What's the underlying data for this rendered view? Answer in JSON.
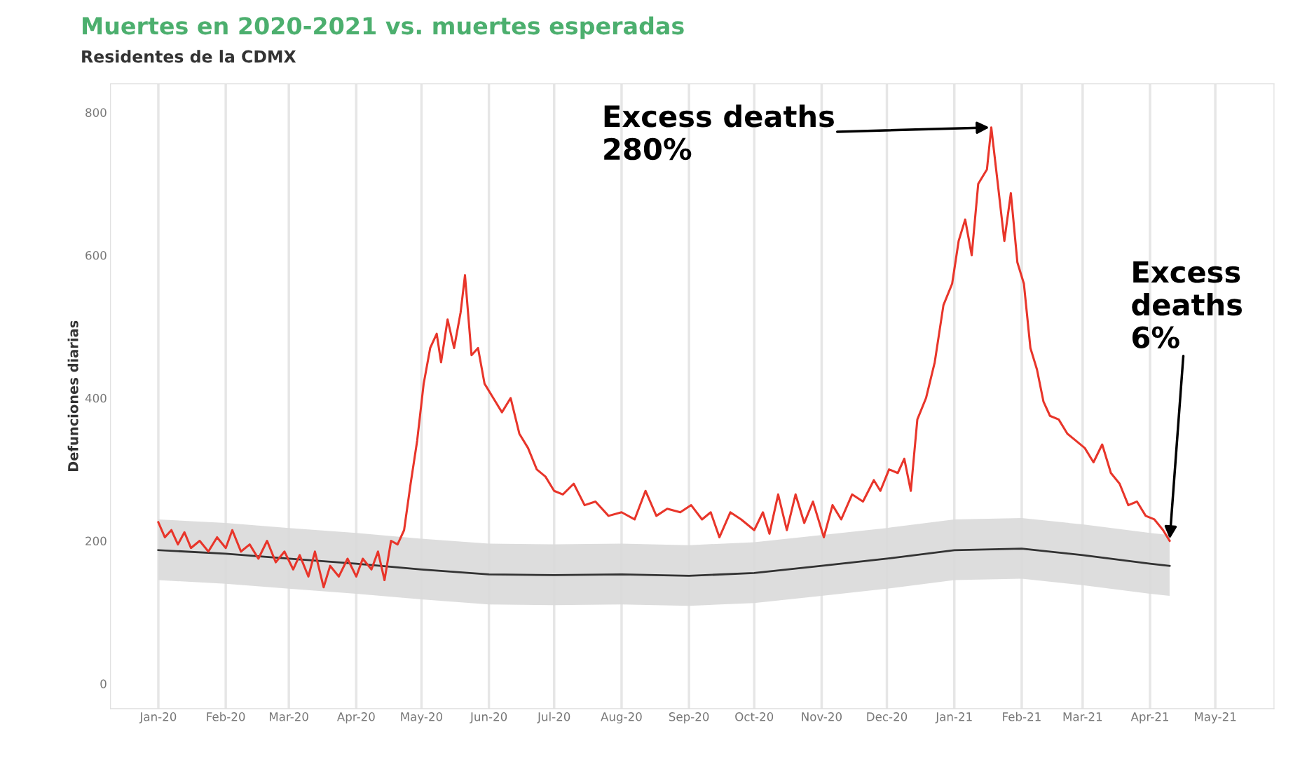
{
  "chart_data": {
    "type": "line",
    "title": "Muertes en 2020-2021 vs. muertes esperadas",
    "subtitle": "Residentes de la CDMX",
    "ylabel": "Defunciones diarias",
    "xlim": [
      "2019-12-10",
      "2021-05-28"
    ],
    "xticks": [
      {
        "value": "2020-01-01",
        "label": "Jan-20"
      },
      {
        "value": "2020-02-01",
        "label": "Feb-20"
      },
      {
        "value": "2020-03-01",
        "label": "Mar-20"
      },
      {
        "value": "2020-04-01",
        "label": "Apr-20"
      },
      {
        "value": "2020-05-01",
        "label": "May-20"
      },
      {
        "value": "2020-06-01",
        "label": "Jun-20"
      },
      {
        "value": "2020-07-01",
        "label": "Jul-20"
      },
      {
        "value": "2020-08-01",
        "label": "Aug-20"
      },
      {
        "value": "2020-09-01",
        "label": "Sep-20"
      },
      {
        "value": "2020-10-01",
        "label": "Oct-20"
      },
      {
        "value": "2020-11-01",
        "label": "Nov-20"
      },
      {
        "value": "2020-12-01",
        "label": "Dec-20"
      },
      {
        "value": "2021-01-01",
        "label": "Jan-21"
      },
      {
        "value": "2021-02-01",
        "label": "Feb-21"
      },
      {
        "value": "2021-03-01",
        "label": "Mar-21"
      },
      {
        "value": "2021-04-01",
        "label": "Apr-21"
      },
      {
        "value": "2021-05-01",
        "label": "May-21"
      }
    ],
    "ylim": [
      -35,
      840
    ],
    "yticks": [
      0,
      200,
      400,
      600,
      800
    ],
    "grid": "x",
    "line_style": "solid",
    "series": [
      {
        "color": "#333333",
        "x": [
          "2020-01-01",
          "2020-02-01",
          "2020-03-01",
          "2020-04-01",
          "2020-05-01",
          "2020-06-01",
          "2020-07-01",
          "2020-08-01",
          "2020-09-01",
          "2020-10-01",
          "2020-11-01",
          "2020-12-01",
          "2021-01-01",
          "2021-02-01",
          "2021-03-01",
          "2021-04-01",
          "2021-04-10"
        ],
        "values": [
          187,
          182,
          175,
          168,
          160,
          153,
          152,
          153,
          151,
          155,
          165,
          175,
          187,
          189,
          180,
          168,
          165
        ],
        "lower": [
          145,
          140,
          133,
          126,
          118,
          111,
          110,
          111,
          109,
          113,
          123,
          133,
          145,
          147,
          138,
          126,
          123
        ],
        "upper": [
          230,
          225,
          218,
          211,
          203,
          196,
          195,
          196,
          194,
          198,
          208,
          218,
          230,
          232,
          223,
          211,
          208
        ]
      },
      {
        "color": "#e8352a",
        "x": [
          "2020-01-01",
          "2020-01-04",
          "2020-01-07",
          "2020-01-10",
          "2020-01-13",
          "2020-01-16",
          "2020-01-20",
          "2020-01-24",
          "2020-01-28",
          "2020-02-01",
          "2020-02-04",
          "2020-02-08",
          "2020-02-12",
          "2020-02-16",
          "2020-02-20",
          "2020-02-24",
          "2020-02-28",
          "2020-03-03",
          "2020-03-06",
          "2020-03-10",
          "2020-03-13",
          "2020-03-17",
          "2020-03-20",
          "2020-03-24",
          "2020-03-28",
          "2020-04-01",
          "2020-04-04",
          "2020-04-08",
          "2020-04-11",
          "2020-04-14",
          "2020-04-17",
          "2020-04-20",
          "2020-04-23",
          "2020-04-26",
          "2020-04-29",
          "2020-05-02",
          "2020-05-05",
          "2020-05-08",
          "2020-05-10",
          "2020-05-13",
          "2020-05-16",
          "2020-05-19",
          "2020-05-21",
          "2020-05-24",
          "2020-05-27",
          "2020-05-30",
          "2020-06-03",
          "2020-06-07",
          "2020-06-11",
          "2020-06-15",
          "2020-06-19",
          "2020-06-23",
          "2020-06-27",
          "2020-07-01",
          "2020-07-05",
          "2020-07-10",
          "2020-07-15",
          "2020-07-20",
          "2020-07-26",
          "2020-08-01",
          "2020-08-07",
          "2020-08-12",
          "2020-08-17",
          "2020-08-22",
          "2020-08-28",
          "2020-09-02",
          "2020-09-07",
          "2020-09-11",
          "2020-09-15",
          "2020-09-20",
          "2020-09-25",
          "2020-10-01",
          "2020-10-05",
          "2020-10-08",
          "2020-10-12",
          "2020-10-16",
          "2020-10-20",
          "2020-10-24",
          "2020-10-28",
          "2020-11-02",
          "2020-11-06",
          "2020-11-10",
          "2020-11-15",
          "2020-11-20",
          "2020-11-25",
          "2020-11-28",
          "2020-12-02",
          "2020-12-06",
          "2020-12-09",
          "2020-12-12",
          "2020-12-15",
          "2020-12-19",
          "2020-12-23",
          "2020-12-27",
          "2020-12-31",
          "2021-01-03",
          "2021-01-06",
          "2021-01-09",
          "2021-01-12",
          "2021-01-16",
          "2021-01-18",
          "2021-01-21",
          "2021-01-24",
          "2021-01-27",
          "2021-01-30",
          "2021-02-02",
          "2021-02-05",
          "2021-02-08",
          "2021-02-11",
          "2021-02-14",
          "2021-02-18",
          "2021-02-22",
          "2021-02-26",
          "2021-03-02",
          "2021-03-06",
          "2021-03-10",
          "2021-03-14",
          "2021-03-18",
          "2021-03-22",
          "2021-03-26",
          "2021-03-30",
          "2021-04-03",
          "2021-04-07",
          "2021-04-10"
        ],
        "values": [
          226,
          205,
          215,
          195,
          212,
          190,
          200,
          185,
          205,
          190,
          215,
          185,
          195,
          175,
          200,
          170,
          185,
          160,
          180,
          150,
          185,
          135,
          165,
          150,
          175,
          150,
          175,
          160,
          185,
          145,
          200,
          195,
          215,
          280,
          340,
          420,
          470,
          490,
          450,
          510,
          470,
          520,
          572,
          460,
          470,
          420,
          400,
          380,
          400,
          350,
          330,
          300,
          290,
          270,
          265,
          280,
          250,
          255,
          235,
          240,
          230,
          270,
          235,
          245,
          240,
          250,
          230,
          240,
          205,
          240,
          230,
          215,
          240,
          210,
          265,
          215,
          265,
          225,
          255,
          205,
          250,
          230,
          265,
          255,
          285,
          270,
          300,
          295,
          315,
          270,
          370,
          400,
          450,
          530,
          560,
          620,
          650,
          600,
          700,
          720,
          779,
          700,
          620,
          687,
          590,
          560,
          470,
          440,
          395,
          375,
          370,
          350,
          340,
          330,
          310,
          335,
          295,
          280,
          250,
          255,
          235,
          230,
          215,
          200
        ]
      }
    ],
    "annotations": [
      {
        "text": "Excess deaths\n280%",
        "x": "2021-01-18",
        "y": 779
      },
      {
        "text": "Excess\ndeaths\n6%",
        "x": "2021-04-10",
        "y": 200
      }
    ]
  }
}
